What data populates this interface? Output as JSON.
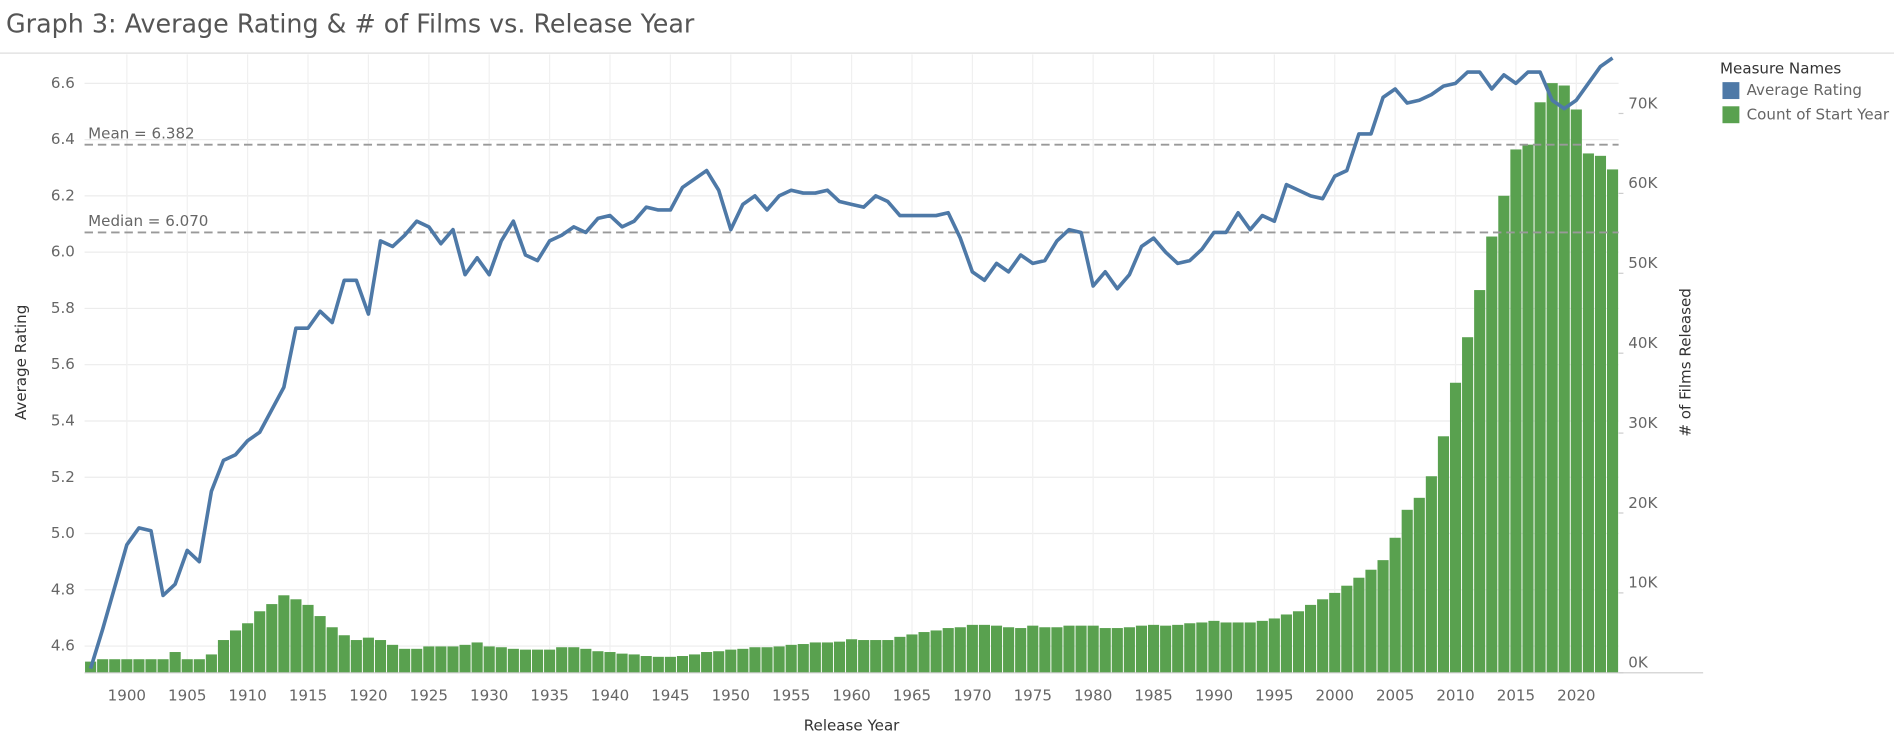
{
  "chart_data": {
    "type": "combo",
    "title": "Graph 3: Average Rating & # of Films vs. Release Year",
    "x_label": "Release Year",
    "y_label": "Average Rating",
    "y2_label": "# of Films Released",
    "legend_title": "Measure Names",
    "legend": "right",
    "grid": true,
    "x": [
      1897,
      1898,
      1899,
      1900,
      1901,
      1902,
      1903,
      1904,
      1905,
      1906,
      1907,
      1908,
      1909,
      1910,
      1911,
      1912,
      1913,
      1914,
      1915,
      1916,
      1917,
      1918,
      1919,
      1920,
      1921,
      1922,
      1923,
      1924,
      1925,
      1926,
      1927,
      1928,
      1929,
      1930,
      1931,
      1932,
      1933,
      1934,
      1935,
      1936,
      1937,
      1938,
      1939,
      1940,
      1941,
      1942,
      1943,
      1944,
      1945,
      1946,
      1947,
      1948,
      1949,
      1950,
      1951,
      1952,
      1953,
      1954,
      1955,
      1956,
      1957,
      1958,
      1959,
      1960,
      1961,
      1962,
      1963,
      1964,
      1965,
      1966,
      1967,
      1968,
      1969,
      1970,
      1971,
      1972,
      1973,
      1974,
      1975,
      1976,
      1977,
      1978,
      1979,
      1980,
      1981,
      1982,
      1983,
      1984,
      1985,
      1986,
      1987,
      1988,
      1989,
      1990,
      1991,
      1992,
      1993,
      1994,
      1995,
      1996,
      1997,
      1998,
      1999,
      2000,
      2001,
      2002,
      2003,
      2004,
      2005,
      2006,
      2007,
      2008,
      2009,
      2010,
      2011,
      2012,
      2013,
      2014,
      2015,
      2016,
      2017,
      2018,
      2019,
      2020,
      2021,
      2022,
      2023
    ],
    "xlim": [
      1896.5,
      2023.5
    ],
    "xticks": [
      1900,
      1905,
      1910,
      1915,
      1920,
      1925,
      1930,
      1935,
      1940,
      1945,
      1950,
      1955,
      1960,
      1965,
      1970,
      1975,
      1980,
      1985,
      1990,
      1995,
      2000,
      2005,
      2010,
      2015,
      2020
    ],
    "ylim": [
      4.505,
      6.703
    ],
    "yticks": [
      4.6,
      4.8,
      {
        "value": 5,
        "label": "5.0"
      },
      5.2,
      5.4,
      5.6,
      5.8,
      {
        "value": 6,
        "label": "6.0"
      },
      6.2,
      6.4,
      6.6
    ],
    "y2lim": [
      0,
      77400
    ],
    "y2ticks": [
      {
        "value": 0,
        "label": "0K"
      },
      {
        "value": 10000,
        "label": "10K"
      },
      {
        "value": 20000,
        "label": "20K"
      },
      {
        "value": 30000,
        "label": "30K"
      },
      {
        "value": 40000,
        "label": "40K"
      },
      {
        "value": 50000,
        "label": "50K"
      },
      {
        "value": 60000,
        "label": "60K"
      },
      {
        "value": 70000,
        "label": "70K"
      }
    ],
    "reference_lines": [
      {
        "label": "Mean = 6.382",
        "value": 6.382
      },
      {
        "label": "Median = 6.070",
        "value": 6.07
      }
    ],
    "series": [
      {
        "name": "Average Rating",
        "type": "line",
        "color": "#4e79a7",
        "values": [
          4.52,
          4.66,
          4.81,
          4.96,
          5.02,
          5.01,
          4.78,
          4.82,
          4.94,
          4.9,
          5.15,
          5.26,
          5.28,
          5.33,
          5.36,
          5.44,
          5.52,
          5.73,
          5.73,
          5.79,
          5.75,
          5.9,
          5.9,
          5.78,
          6.04,
          6.02,
          6.06,
          6.11,
          6.09,
          6.03,
          6.08,
          5.92,
          5.98,
          5.92,
          6.04,
          6.11,
          5.99,
          5.97,
          6.04,
          6.06,
          6.09,
          6.07,
          6.12,
          6.13,
          6.09,
          6.11,
          6.16,
          6.15,
          6.15,
          6.23,
          6.26,
          6.29,
          6.22,
          6.08,
          6.17,
          6.2,
          6.15,
          6.2,
          6.22,
          6.21,
          6.21,
          6.22,
          6.18,
          6.17,
          6.16,
          6.2,
          6.18,
          6.13,
          6.13,
          6.13,
          6.13,
          6.14,
          6.05,
          5.93,
          5.9,
          5.96,
          5.93,
          5.99,
          5.96,
          5.97,
          6.04,
          6.08,
          6.07,
          5.88,
          5.93,
          5.87,
          5.92,
          6.02,
          6.05,
          6.0,
          5.96,
          5.97,
          6.01,
          6.07,
          6.07,
          6.14,
          6.08,
          6.13,
          6.11,
          6.24,
          6.22,
          6.2,
          6.19,
          6.27,
          6.29,
          6.42,
          6.42,
          6.55,
          6.58,
          6.53,
          6.54,
          6.56,
          6.59,
          6.6,
          6.64,
          6.64,
          6.58,
          6.63,
          6.6,
          6.64,
          6.64,
          6.54,
          6.51,
          6.54,
          6.6,
          6.66,
          6.69
        ]
      },
      {
        "name": "Count of Start Year",
        "type": "bar",
        "axis": "y2",
        "color": "#59a14f",
        "values": [
          1400,
          1700,
          1700,
          1700,
          1700,
          1700,
          1700,
          2600,
          1700,
          1700,
          2300,
          4100,
          5300,
          6200,
          7700,
          8600,
          9700,
          9200,
          8500,
          7100,
          5700,
          4700,
          4100,
          4400,
          4100,
          3500,
          3000,
          3000,
          3300,
          3300,
          3300,
          3500,
          3800,
          3300,
          3200,
          3000,
          2900,
          2900,
          2900,
          3200,
          3200,
          3000,
          2700,
          2600,
          2400,
          2300,
          2100,
          2000,
          2000,
          2100,
          2300,
          2600,
          2700,
          2900,
          3000,
          3200,
          3200,
          3300,
          3500,
          3600,
          3800,
          3800,
          3900,
          4200,
          4100,
          4100,
          4100,
          4500,
          4800,
          5100,
          5300,
          5600,
          5700,
          6000,
          6000,
          5900,
          5700,
          5600,
          5900,
          5700,
          5700,
          5900,
          5900,
          5900,
          5600,
          5600,
          5700,
          5900,
          6000,
          5900,
          6000,
          6200,
          6300,
          6500,
          6300,
          6300,
          6300,
          6500,
          6800,
          7300,
          7700,
          8500,
          9200,
          10000,
          10900,
          11900,
          12900,
          14100,
          16900,
          20400,
          21900,
          24600,
          29600,
          36300,
          42000,
          47900,
          54600,
          59700,
          65500,
          66100,
          71400,
          73800,
          73500,
          70500,
          65000,
          64700,
          63000
        ]
      }
    ]
  }
}
